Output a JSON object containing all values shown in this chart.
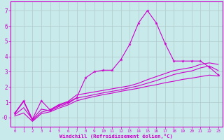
{
  "background_color": "#c8eaea",
  "grid_color": "#b0c8c8",
  "line_color": "#cc00cc",
  "xlabel": "Windchill (Refroidissement éolien,°C)",
  "xlim": [
    -0.5,
    23.5
  ],
  "ylim": [
    -0.6,
    7.6
  ],
  "xticks": [
    0,
    1,
    2,
    3,
    4,
    5,
    6,
    7,
    8,
    9,
    10,
    11,
    12,
    13,
    14,
    15,
    16,
    17,
    18,
    19,
    20,
    21,
    22,
    23
  ],
  "yticks": [
    0,
    1,
    2,
    3,
    4,
    5,
    6,
    7
  ],
  "ytick_labels": [
    "-0",
    "1",
    "2",
    "3",
    "4",
    "5",
    "6",
    "7"
  ],
  "line1_x": [
    0,
    1,
    2,
    3,
    4,
    5,
    6,
    7,
    8,
    9,
    10,
    11,
    12,
    13,
    14,
    15,
    16,
    17,
    18,
    19,
    20,
    21,
    22,
    23
  ],
  "line1_y": [
    0.3,
    1.1,
    -0.1,
    1.1,
    0.5,
    0.8,
    1.0,
    1.3,
    2.6,
    3.0,
    3.1,
    3.1,
    3.8,
    4.8,
    6.2,
    7.0,
    6.2,
    4.85,
    3.7,
    3.7,
    3.7,
    3.7,
    3.3,
    2.8
  ],
  "line2_x": [
    0,
    1,
    2,
    3,
    4,
    5,
    6,
    7,
    8,
    9,
    10,
    11,
    12,
    13,
    14,
    15,
    16,
    17,
    18,
    19,
    20,
    21,
    22,
    23
  ],
  "line2_y": [
    0.1,
    0.3,
    -0.25,
    0.25,
    0.38,
    0.62,
    0.82,
    1.1,
    1.25,
    1.38,
    1.5,
    1.6,
    1.72,
    1.82,
    1.92,
    2.05,
    2.15,
    2.28,
    2.38,
    2.5,
    2.58,
    2.68,
    2.78,
    2.72
  ],
  "line3_x": [
    0,
    1,
    2,
    3,
    4,
    5,
    6,
    7,
    8,
    9,
    10,
    11,
    12,
    13,
    14,
    15,
    16,
    17,
    18,
    19,
    20,
    21,
    22,
    23
  ],
  "line3_y": [
    0.25,
    1.05,
    -0.18,
    0.35,
    0.52,
    0.85,
    1.05,
    1.48,
    1.58,
    1.68,
    1.78,
    1.88,
    1.98,
    2.08,
    2.25,
    2.48,
    2.68,
    2.88,
    3.08,
    3.18,
    3.28,
    3.48,
    3.58,
    3.48
  ],
  "line4_x": [
    0,
    1,
    2,
    3,
    4,
    5,
    6,
    7,
    8,
    9,
    10,
    11,
    12,
    13,
    14,
    15,
    16,
    17,
    18,
    19,
    20,
    21,
    22,
    23
  ],
  "line4_y": [
    0.18,
    0.65,
    -0.12,
    0.55,
    0.45,
    0.72,
    0.92,
    1.28,
    1.38,
    1.5,
    1.62,
    1.72,
    1.82,
    1.95,
    2.08,
    2.25,
    2.42,
    2.62,
    2.82,
    2.95,
    3.05,
    3.25,
    3.38,
    3.08
  ]
}
